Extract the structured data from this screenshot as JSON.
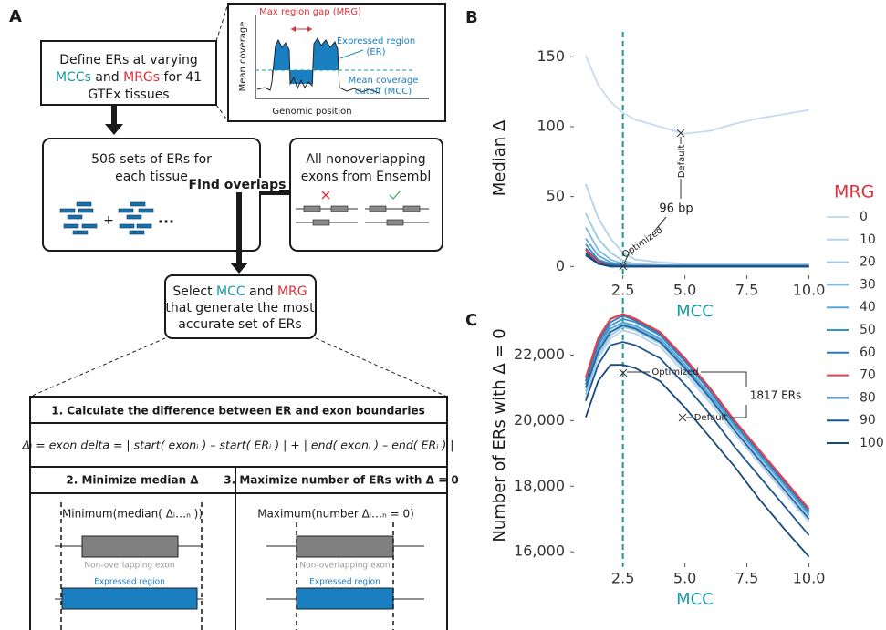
{
  "diagram": {
    "panel": "A",
    "define_box": [
      [
        "Define ERs at varying"
      ],
      [
        "MCCs",
        " and ",
        "MRGs",
        " for 41"
      ],
      [
        "GTEx tissues"
      ]
    ],
    "inset": {
      "mrg": "Max region gap (MRG)",
      "er": [
        "Expressed region",
        "(ER)"
      ],
      "mcc": [
        "Mean coverage",
        "cutoff (MCC)"
      ],
      "y_label": "Mean coverage",
      "x_label": "Genomic position"
    },
    "sets_box": {
      "lines": [
        "506 sets of ERs for",
        "each tissue"
      ],
      "plus": "+",
      "dots": "..."
    },
    "exons_box": [
      "All nonoverlapping",
      "exons from Ensembl"
    ],
    "overlap_label": "Find overlaps",
    "select_box": [
      [
        "Select ",
        "MCC",
        " and ",
        "MRG"
      ],
      [
        "that generate the most"
      ],
      [
        "accurate set of ERs"
      ]
    ],
    "table": {
      "step1": "1. Calculate the difference between ER and exon boundaries",
      "formula": "Δᵢ = exon delta = | start( exonᵢ ) – start( ERᵢ ) | + | end( exonᵢ ) – end( ERᵢ ) |",
      "step2": {
        "title": "2. Minimize median Δ",
        "expr": "Minimum(median( Δᵢ…ₙ ))",
        "exon": "Non-overlapping exon",
        "region": "Expressed region"
      },
      "step3": {
        "title": "3. Maximize number of ERs with Δ = 0",
        "expr": "Maximum(number Δᵢ…ₙ = 0)",
        "exon": "Non-overlapping exon",
        "region": "Expressed region"
      }
    }
  },
  "chart_data": [
    {
      "type": "line",
      "panel": "B",
      "xlabel": "MCC",
      "ylabel": "Median Δ",
      "xlabel_color": "#1a9aa0",
      "x": [
        1,
        1.5,
        2,
        2.5,
        3,
        4,
        5,
        6,
        7,
        8,
        9,
        10
      ],
      "xlim": [
        0.6,
        10.2
      ],
      "xticks": [
        {
          "value": 2.5,
          "label": "2.5"
        },
        {
          "value": 5,
          "label": "5.0"
        },
        {
          "value": 7.5,
          "label": "7.5"
        },
        {
          "value": 10,
          "label": "10.0"
        }
      ],
      "ylim": [
        -5,
        160
      ],
      "yticks": [
        0,
        50,
        100,
        150
      ],
      "grid": false,
      "reference_line": 2.5,
      "reference_color": "#1a9aa0",
      "legend": "right",
      "legend_title": "MRG",
      "legend_title_color": "#e0303a",
      "annotations": [
        "Default",
        "96 bp",
        "Optimized"
      ],
      "series": [
        {
          "name": "0",
          "color": "#c6dbef",
          "values": [
            151,
            130,
            118,
            110,
            105,
            100,
            95,
            97,
            102,
            106,
            109,
            112
          ]
        },
        {
          "name": "10",
          "color": "#b3d3ea",
          "values": [
            59,
            35,
            20,
            10,
            5,
            3,
            2,
            2,
            2,
            2,
            2,
            2
          ]
        },
        {
          "name": "20",
          "color": "#9ecae1",
          "values": [
            38,
            20,
            10,
            4,
            2,
            1,
            1,
            1,
            1,
            1,
            1,
            1
          ]
        },
        {
          "name": "30",
          "color": "#7bbbe0",
          "values": [
            28,
            12,
            5,
            2,
            1,
            1,
            1,
            1,
            1,
            1,
            1,
            1
          ]
        },
        {
          "name": "40",
          "color": "#5aa7d6",
          "values": [
            20,
            8,
            3,
            1,
            1,
            1,
            1,
            1,
            1,
            1,
            1,
            1
          ]
        },
        {
          "name": "50",
          "color": "#3d8fc7",
          "values": [
            16,
            5,
            2,
            1,
            0,
            0,
            0,
            0,
            0,
            0,
            0,
            0
          ]
        },
        {
          "name": "60",
          "color": "#2a7ab9",
          "values": [
            13,
            4,
            1,
            0,
            0,
            0,
            0,
            0,
            0,
            0,
            0,
            0
          ]
        },
        {
          "name": "70",
          "color": "#e04050",
          "values": [
            12,
            3,
            1,
            0,
            0,
            0,
            0,
            0,
            0,
            0,
            0,
            0
          ]
        },
        {
          "name": "80",
          "color": "#2366a3",
          "values": [
            10,
            2,
            1,
            0,
            0,
            0,
            0,
            0,
            0,
            0,
            0,
            0
          ]
        },
        {
          "name": "90",
          "color": "#1d5690",
          "values": [
            9,
            2,
            0,
            0,
            0,
            0,
            0,
            0,
            0,
            0,
            0,
            0
          ]
        },
        {
          "name": "100",
          "color": "#174a7e",
          "values": [
            8,
            2,
            0,
            0,
            0,
            0,
            0,
            0,
            0,
            0,
            0,
            0
          ]
        }
      ]
    },
    {
      "type": "line",
      "panel": "C",
      "xlabel": "MCC",
      "ylabel": "Number of ERs with  Δ = 0",
      "xlabel_color": "#1a9aa0",
      "x": [
        1,
        1.5,
        2,
        2.5,
        3,
        4,
        5,
        6,
        7,
        8,
        9,
        10
      ],
      "xlim": [
        0.6,
        10.2
      ],
      "xticks": [
        {
          "value": 2.5,
          "label": "2.5"
        },
        {
          "value": 5,
          "label": "5.0"
        },
        {
          "value": 7.5,
          "label": "7.5"
        },
        {
          "value": 10,
          "label": "10.0"
        }
      ],
      "ylim": [
        15700,
        23400
      ],
      "yticks": [
        {
          "value": 16000,
          "label": "16,000"
        },
        {
          "value": 18000,
          "label": "18,000"
        },
        {
          "value": 20000,
          "label": "20,000"
        },
        {
          "value": 22000,
          "label": "22,000"
        }
      ],
      "grid": false,
      "reference_line": 2.5,
      "reference_color": "#1a9aa0",
      "annotations": [
        "Optimized",
        "1817 ERs",
        "Default"
      ],
      "series": [
        {
          "color": "#c6dbef",
          "values": [
            21200,
            22500,
            23100,
            23200,
            23050,
            22600,
            21700,
            20750,
            19700,
            18750,
            17800,
            16900
          ]
        },
        {
          "color": "#b3d3ea",
          "values": [
            20700,
            21900,
            22500,
            22750,
            22650,
            22250,
            21450,
            20550,
            19600,
            18700,
            17800,
            16950
          ]
        },
        {
          "color": "#9ecae1",
          "values": [
            20800,
            22000,
            22600,
            22850,
            22750,
            22350,
            21550,
            20650,
            19700,
            18800,
            17900,
            17000
          ]
        },
        {
          "color": "#7bbbe0",
          "values": [
            20900,
            22100,
            22700,
            22950,
            22850,
            22450,
            21650,
            20750,
            19800,
            18900,
            18000,
            17100
          ]
        },
        {
          "color": "#5aa7d6",
          "values": [
            21000,
            22200,
            22800,
            23000,
            22900,
            22500,
            21700,
            20800,
            19850,
            18950,
            18050,
            17150
          ]
        },
        {
          "color": "#3d8fc7",
          "values": [
            21100,
            22300,
            22900,
            23100,
            23000,
            22600,
            21800,
            20900,
            19900,
            19000,
            18100,
            17200
          ]
        },
        {
          "color": "#2a7ab9",
          "values": [
            21200,
            22400,
            23000,
            23200,
            23050,
            22650,
            21850,
            20950,
            19950,
            19050,
            18150,
            17250
          ]
        },
        {
          "color": "#e04050",
          "values": [
            21300,
            22500,
            23100,
            23250,
            23100,
            22700,
            21900,
            21000,
            20000,
            19100,
            18200,
            17300
          ]
        },
        {
          "color": "#2366a3",
          "values": [
            21000,
            22100,
            22700,
            22900,
            22800,
            22400,
            21600,
            20700,
            19700,
            18800,
            17900,
            17000
          ]
        },
        {
          "color": "#1d5690",
          "values": [
            20600,
            21700,
            22300,
            22400,
            22300,
            21900,
            21100,
            20200,
            19200,
            18300,
            17400,
            16500
          ]
        },
        {
          "color": "#174a7e",
          "values": [
            20100,
            21200,
            21700,
            21700,
            21600,
            21200,
            20400,
            19500,
            18600,
            17600,
            16700,
            15850
          ]
        }
      ]
    }
  ]
}
